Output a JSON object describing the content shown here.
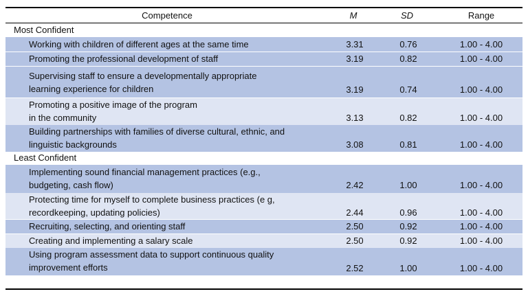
{
  "header": {
    "competence": "Competence",
    "m": "M",
    "sd": "SD",
    "range": "Range"
  },
  "sections": [
    {
      "label": "Most Confident",
      "rows": [
        {
          "competence": [
            "Working with children of different ages at the same time"
          ],
          "m": "3.31",
          "sd": "0.76",
          "range": "1.00 - 4.00"
        },
        {
          "competence": [
            "Promoting the professional development of staff"
          ],
          "m": "3.19",
          "sd": "0.82",
          "range": "1.00 - 4.00"
        },
        {
          "competence": [
            "Supervising staff to ensure a developmentally appropriate",
            "learning experience for children"
          ],
          "m": "3.19",
          "sd": "0.74",
          "range": "1.00 - 4.00"
        },
        {
          "competence": [
            "Promoting a positive image of the program",
            "in the community"
          ],
          "m": "3.13",
          "sd": "0.82",
          "range": "1.00 - 4.00"
        },
        {
          "competence": [
            "Building partnerships with families of diverse cultural, ethnic, and",
            "linguistic backgrounds"
          ],
          "m": "3.08",
          "sd": "0.81",
          "range": "1.00 - 4.00"
        }
      ]
    },
    {
      "label": "Least Confident",
      "rows": [
        {
          "competence": [
            "Implementing sound financial management practices (e.g.,",
            "budgeting, cash flow)"
          ],
          "m": "2.42",
          "sd": "1.00",
          "range": "1.00 - 4.00"
        },
        {
          "competence": [
            "Protecting time for myself to complete business practices (e g,",
            "recordkeeping, updating policies)"
          ],
          "m": "2.44",
          "sd": "0.96",
          "range": "1.00 - 4.00"
        },
        {
          "competence": [
            "Recruiting, selecting, and orienting staff"
          ],
          "m": "2.50",
          "sd": "0.92",
          "range": "1.00 - 4.00"
        },
        {
          "competence": [
            "Creating and implementing a salary scale"
          ],
          "m": "2.50",
          "sd": "0.92",
          "range": "1.00 - 4.00"
        },
        {
          "competence": [
            "Using program assessment data to support continuous quality",
            "improvement efforts"
          ],
          "m": "2.52",
          "sd": "1.00",
          "range": "1.00 - 4.00"
        }
      ]
    }
  ],
  "colors": {
    "row_band": "#b4c3e3",
    "row_light": "#dfe5f3",
    "rule": "#000000"
  }
}
